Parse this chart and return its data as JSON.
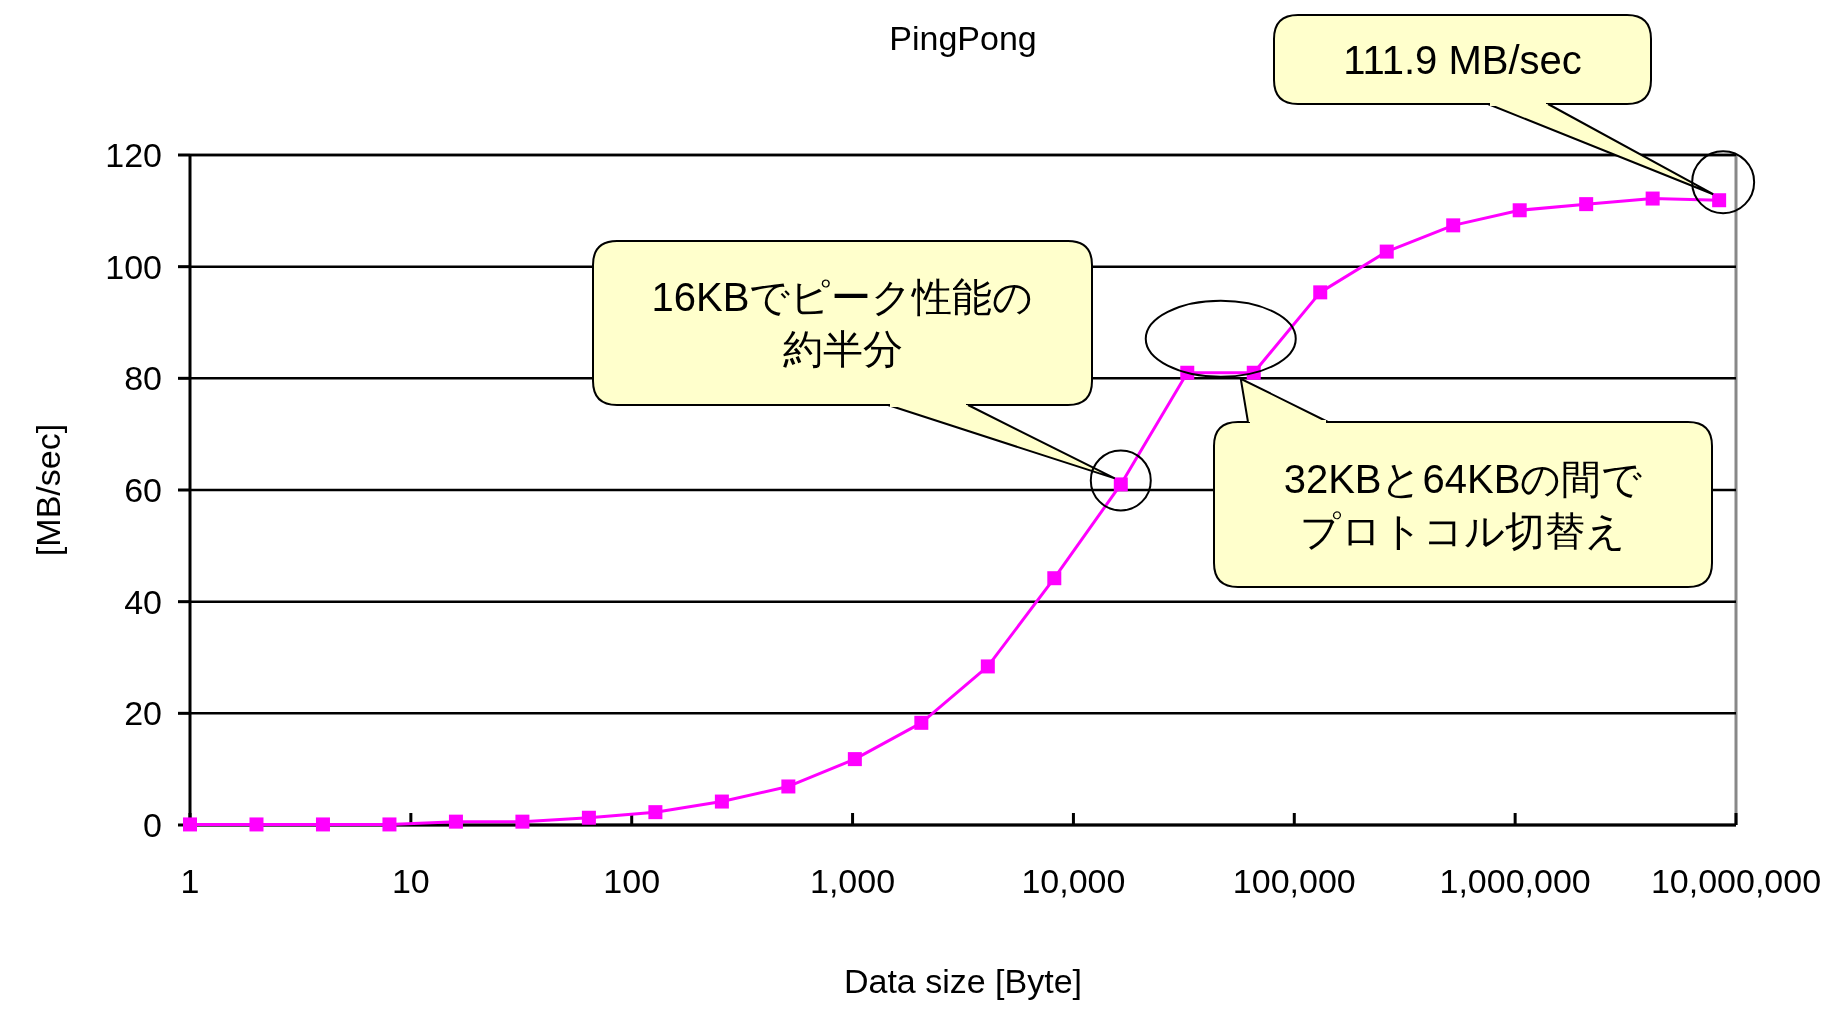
{
  "chart_data": {
    "type": "line",
    "title": "PingPong",
    "xlabel": "Data size [Byte]",
    "ylabel": "[MB/sec]",
    "x": [
      1,
      2,
      4,
      8,
      16,
      32,
      64,
      128,
      256,
      512,
      1024,
      2048,
      4096,
      8192,
      16384,
      32768,
      65536,
      131072,
      262144,
      524288,
      1048576,
      2097152,
      4194304,
      8388608
    ],
    "series": [
      {
        "color": "#ff00ff",
        "values": [
          0.1,
          0.1,
          0.1,
          0.1,
          0.6,
          0.6,
          1.3,
          2.3,
          4.2,
          6.9,
          11.8,
          18.3,
          28.4,
          44.2,
          61,
          81,
          81,
          95.4,
          102.7,
          107.4,
          110.1,
          111.2,
          112.2,
          111.9
        ]
      }
    ],
    "log": "x",
    "xlim": [
      1,
      10000000
    ],
    "xticks": [
      1,
      10,
      100,
      {
        "value": 1000,
        "label": "1,000"
      },
      {
        "value": 10000,
        "label": "10,000"
      },
      {
        "value": 100000,
        "label": "100,000"
      },
      {
        "value": 1000000,
        "label": "1,000,000"
      },
      {
        "value": 10000000,
        "label": "10,000,000"
      }
    ],
    "ylim": [
      0,
      120
    ],
    "yticks": [
      0,
      20,
      40,
      60,
      80,
      100,
      120
    ],
    "grid": "y",
    "marker": "square",
    "line_style": "solid",
    "annotations": [
      {
        "text": "111.9 MB/sec",
        "x": 8388608,
        "y": 111.9
      },
      {
        "text": "16KBでピーク性能の約半分",
        "x": 16384,
        "y": 61
      },
      {
        "text": "32KBと64KBの間でプロトコル切替え",
        "x": 65536,
        "y": 81
      }
    ]
  }
}
